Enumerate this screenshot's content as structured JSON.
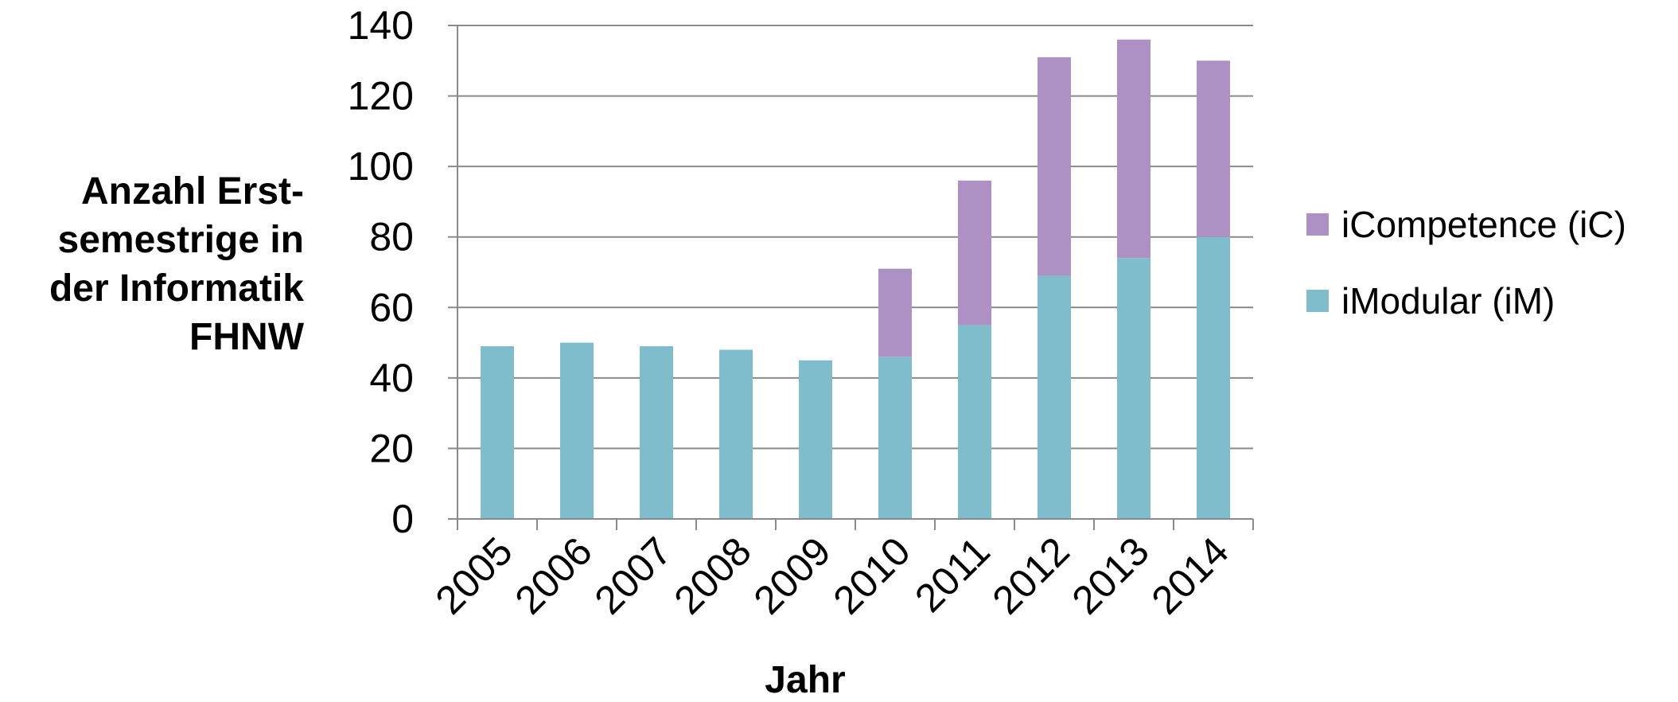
{
  "chart_data": {
    "type": "bar",
    "stacked": true,
    "categories": [
      "2005",
      "2006",
      "2007",
      "2008",
      "2009",
      "2010",
      "2011",
      "2012",
      "2013",
      "2014"
    ],
    "series": [
      {
        "name": "iModular (iM)",
        "color": "#7fbccc",
        "values": [
          49,
          50,
          49,
          48,
          45,
          46,
          55,
          69,
          74,
          80
        ]
      },
      {
        "name": "iCompetence (iC)",
        "color": "#ad90c4",
        "values": [
          0,
          0,
          0,
          0,
          0,
          25,
          41,
          62,
          62,
          50
        ]
      }
    ],
    "xlabel": "Jahr",
    "ylabel_lines": [
      "Anzahl Erst-",
      "semestrige in",
      "der Informatik",
      "FHNW"
    ],
    "ylim": [
      0,
      140
    ],
    "yticks": [
      0,
      20,
      40,
      60,
      80,
      100,
      120,
      140
    ],
    "grid": true,
    "legend_position": "right",
    "legend_order": [
      "iCompetence (iC)",
      "iModular (iM)"
    ]
  }
}
